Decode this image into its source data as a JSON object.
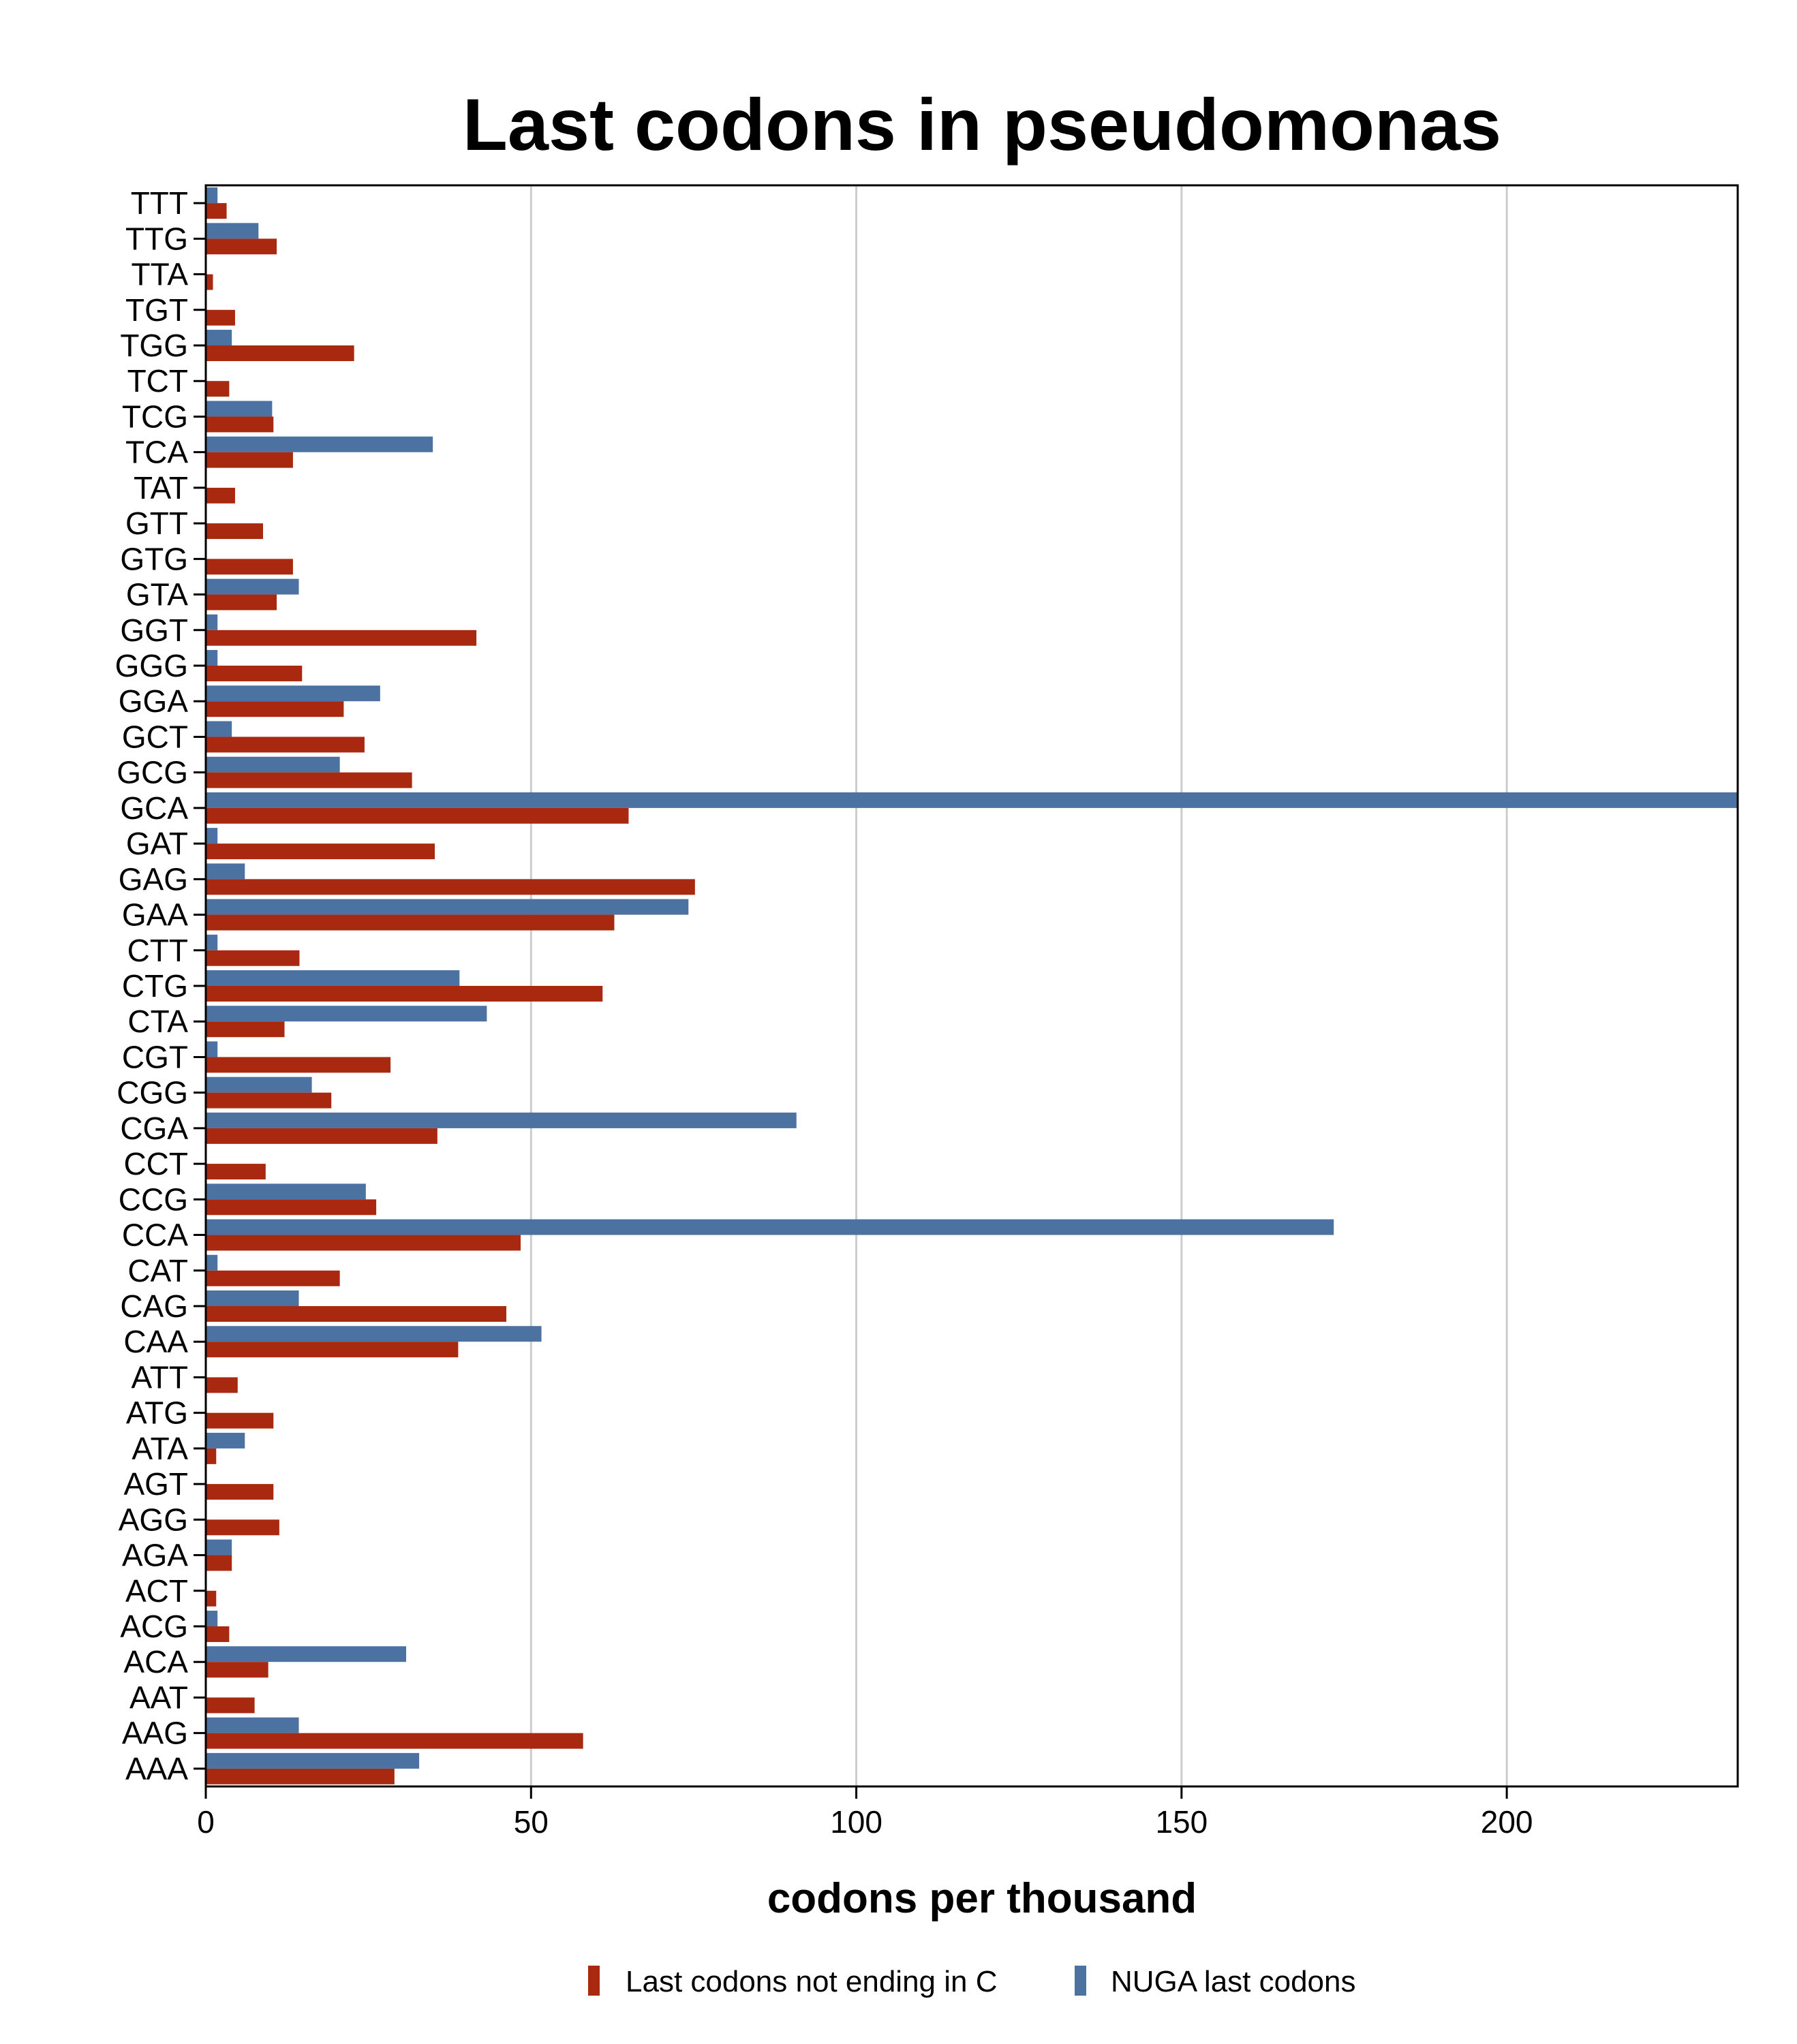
{
  "chart_data": {
    "type": "bar",
    "orientation": "horizontal",
    "title": "Last codons in pseudomonas",
    "xlabel": "codons per thousand",
    "ylabel": "",
    "xlim": [
      0,
      235.5
    ],
    "xticks": [
      0,
      50,
      100,
      150,
      200
    ],
    "grid": true,
    "legend_position": "bottom",
    "categories": [
      "TTT",
      "TTG",
      "TTA",
      "TGT",
      "TGG",
      "TCT",
      "TCG",
      "TCA",
      "TAT",
      "GTT",
      "GTG",
      "GTA",
      "GGT",
      "GGG",
      "GGA",
      "GCT",
      "GCG",
      "GCA",
      "GAT",
      "GAG",
      "GAA",
      "CTT",
      "CTG",
      "CTA",
      "CGT",
      "CGG",
      "CGA",
      "CCT",
      "CCG",
      "CCA",
      "CAT",
      "CAG",
      "CAA",
      "ATT",
      "ATG",
      "ATA",
      "AGT",
      "AGG",
      "AGA",
      "ACT",
      "ACG",
      "ACA",
      "AAT",
      "AAG",
      "AAA"
    ],
    "series": [
      {
        "name": "Last codons not ending in C",
        "color": "#a8290f",
        "values": [
          3.2,
          10.9,
          1.1,
          4.5,
          22.8,
          3.6,
          10.4,
          13.4,
          4.5,
          8.8,
          13.4,
          10.9,
          41.6,
          14.8,
          21.2,
          24.4,
          31.7,
          65.0,
          35.2,
          75.2,
          62.8,
          14.4,
          61.0,
          12.1,
          28.4,
          19.3,
          35.6,
          9.2,
          26.2,
          48.4,
          20.6,
          46.2,
          38.8,
          4.9,
          10.4,
          1.6,
          10.4,
          11.3,
          4.0,
          1.6,
          3.6,
          9.6,
          7.5,
          58.0,
          29.0
        ]
      },
      {
        "name": "NUGA last codons",
        "color": "#4b72a0",
        "values": [
          1.8,
          8.1,
          0,
          0,
          4.0,
          0,
          10.2,
          34.9,
          0,
          0,
          0,
          14.3,
          1.8,
          1.8,
          26.8,
          4.0,
          20.6,
          235.5,
          1.8,
          6.0,
          74.2,
          1.8,
          39.0,
          43.2,
          1.8,
          16.3,
          90.8,
          0,
          24.6,
          173.4,
          1.8,
          14.3,
          51.6,
          0,
          0,
          6.0,
          0,
          0,
          4.0,
          0,
          1.8,
          30.8,
          0,
          14.3,
          32.8
        ]
      }
    ]
  }
}
